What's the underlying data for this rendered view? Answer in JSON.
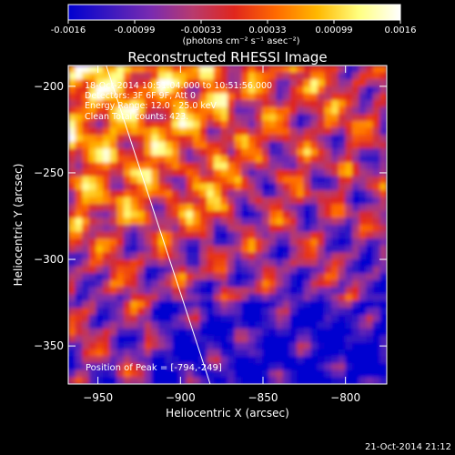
{
  "chart_data": {
    "type": "heatmap",
    "title": "Reconstructed RHESSI Image",
    "xlabel": "Heliocentric X (arcsec)",
    "ylabel": "Heliocentric Y (arcsec)",
    "xlim": [
      -968,
      -775
    ],
    "ylim": [
      -372,
      -188
    ],
    "x_ticks": [
      -950,
      -900,
      -850,
      -800
    ],
    "y_ticks": [
      -200,
      -250,
      -300,
      -350
    ],
    "colorbar": {
      "range": [
        -0.0016,
        0.0016
      ],
      "ticks": [
        "-0.0016",
        "-0.00099",
        "-0.00033",
        "0.00033",
        "0.00099",
        "0.0016"
      ],
      "unit_label": "(photons cm⁻² s⁻¹ asec⁻²)",
      "colors": [
        "#0000d0",
        "#3a18c0",
        "#7a2bb0",
        "#b83a6e",
        "#e0261c",
        "#ff6a00",
        "#ffb800",
        "#ffff80",
        "#ffffff"
      ]
    },
    "annotations": [
      "18-Oct-2014 10:51:04.000 to 10:51:56.000",
      "Detectors: 3F 6F 9F, Att 0",
      "Energy Range: 12.0 - 25.0 keV",
      "Clean    Total counts: 423."
    ],
    "peak_label": "Position of Peak = [-794,-249]",
    "limb_line": [
      [
        -945,
        -188
      ],
      [
        -882,
        -372
      ]
    ]
  },
  "footer": {
    "timestamp": "21-Oct-2014 21:12"
  }
}
